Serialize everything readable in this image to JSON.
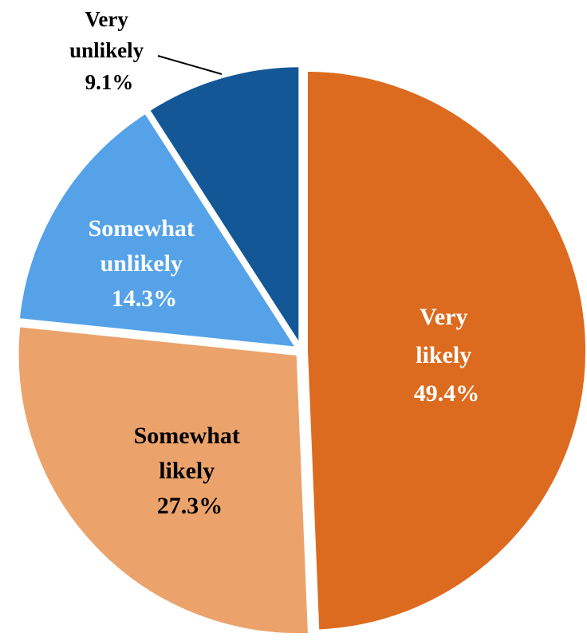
{
  "chart_data": {
    "type": "pie",
    "title": "",
    "slices": [
      {
        "line1": "Very",
        "line2": "likely",
        "pct_label": "49.4%",
        "value": 49.4,
        "color": "#DC6B1F",
        "text_color": "#ffffff"
      },
      {
        "line1": "Somewhat",
        "line2": "likely",
        "pct_label": "27.3%",
        "value": 27.3,
        "color": "#EBA36B",
        "text_color": "#000000"
      },
      {
        "line1": "Somewhat",
        "line2": "unlikely",
        "pct_label": "14.3%",
        "value": 14.3,
        "color": "#55A2E8",
        "text_color": "#ffffff"
      },
      {
        "line1": "Very",
        "line2": "unlikely",
        "pct_label": "9.1%",
        "value": 9.1,
        "color": "#135797",
        "text_color": "#000000"
      }
    ],
    "start": "12 o'clock",
    "direction": "clockwise",
    "legend": "none"
  }
}
